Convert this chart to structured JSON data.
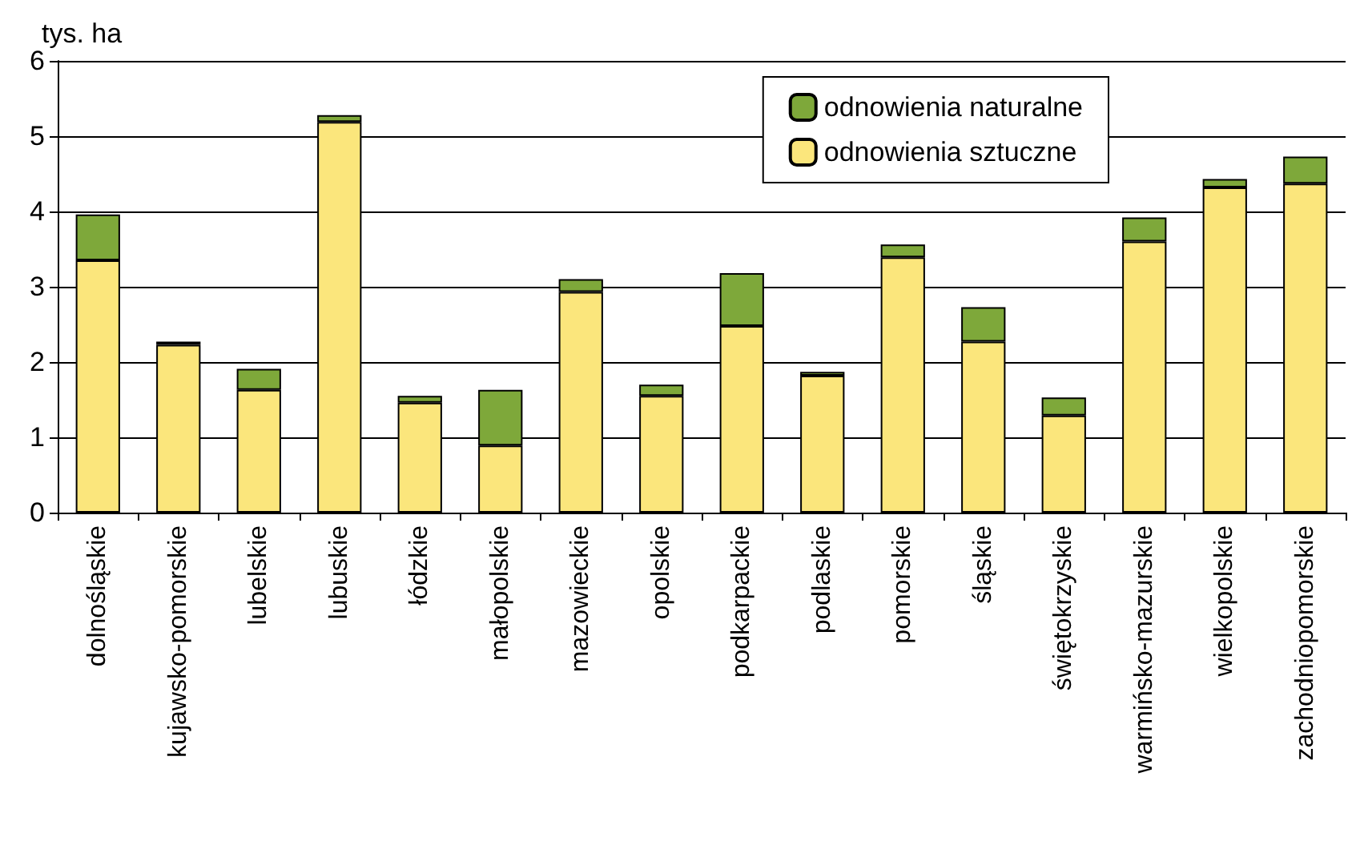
{
  "chart_data": {
    "type": "bar",
    "stacked": true,
    "ylabel": "tys. ha",
    "categories": [
      "dolnośląskie",
      "kujawsko-pomorskie",
      "lubelskie",
      "lubuskie",
      "łódzkie",
      "małopolskie",
      "mazowieckie",
      "opolskie",
      "podkarpackie",
      "podlaskie",
      "pomorskie",
      "śląskie",
      "świętokrzyskie",
      "warmińsko-mazurskie",
      "wielkopolskie",
      "zachodniopomorskie"
    ],
    "series": [
      {
        "name": "odnowienia sztuczne",
        "color": "#fbe67c",
        "values": [
          3.35,
          2.23,
          1.63,
          5.19,
          1.46,
          0.89,
          2.93,
          1.55,
          2.48,
          1.82,
          3.39,
          2.27,
          1.29,
          3.6,
          4.32,
          4.37
        ]
      },
      {
        "name": "odnowienia naturalne",
        "color": "#7ea83a",
        "values": [
          0.61,
          0.04,
          0.28,
          0.09,
          0.09,
          0.74,
          0.17,
          0.15,
          0.7,
          0.05,
          0.17,
          0.46,
          0.24,
          0.32,
          0.11,
          0.36
        ]
      }
    ],
    "ylim": [
      0,
      6
    ],
    "yticks": [
      0,
      1,
      2,
      3,
      4,
      5,
      6
    ],
    "grid": "y",
    "legend": "top right"
  }
}
